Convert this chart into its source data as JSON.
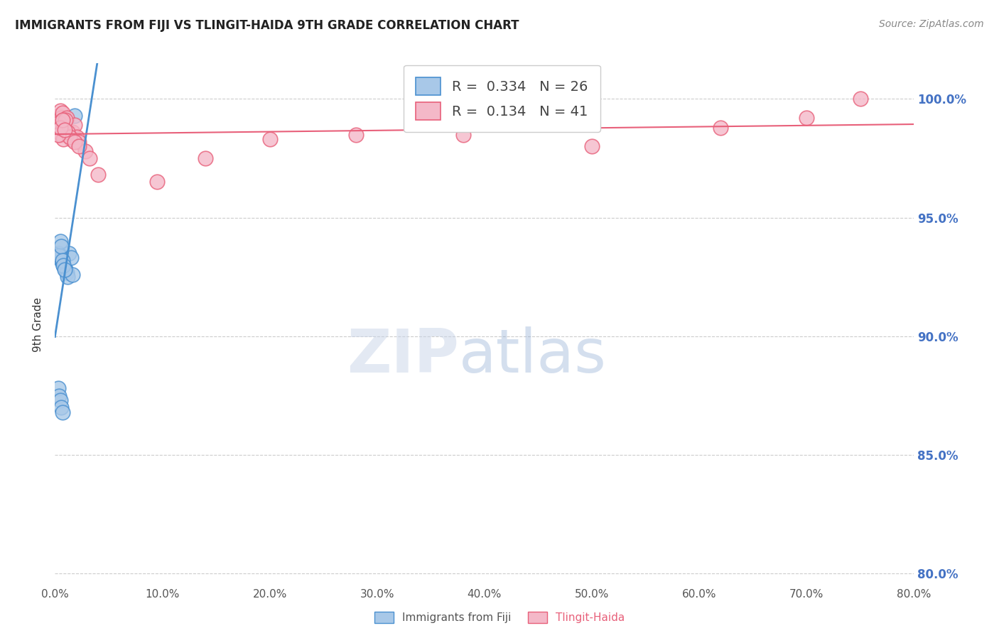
{
  "title": "IMMIGRANTS FROM FIJI VS TLINGIT-HAIDA 9TH GRADE CORRELATION CHART",
  "source": "Source: ZipAtlas.com",
  "ylabel": "9th Grade",
  "legend_r": [
    0.334,
    0.134
  ],
  "legend_n": [
    26,
    41
  ],
  "xlim": [
    0.0,
    80.0
  ],
  "ylim": [
    79.5,
    101.5
  ],
  "yticks": [
    80,
    85,
    90,
    95,
    100
  ],
  "xticks": [
    0,
    10,
    20,
    30,
    40,
    50,
    60,
    70,
    80
  ],
  "blue_face_color": "#a8c8e8",
  "blue_edge_color": "#4a90d0",
  "pink_face_color": "#f4b8c8",
  "pink_edge_color": "#e8607a",
  "blue_line_color": "#4a90d0",
  "pink_line_color": "#e8607a",
  "bottom_legend_labels": [
    "Immigrants from Fiji",
    "Tlingit-Haida"
  ],
  "fiji_x": [
    0.3,
    0.4,
    0.5,
    0.6,
    0.7,
    0.8,
    0.9,
    1.0,
    1.1,
    1.2,
    1.3,
    1.5,
    1.6,
    0.3,
    0.4,
    0.5,
    0.6,
    0.7,
    0.3,
    0.4,
    0.5,
    0.6,
    0.7,
    0.8,
    0.9,
    1.8
  ],
  "fiji_y": [
    93.5,
    93.3,
    93.4,
    93.2,
    93.1,
    93.0,
    92.9,
    92.8,
    92.7,
    92.5,
    93.5,
    93.3,
    92.6,
    87.8,
    87.5,
    87.3,
    87.0,
    86.8,
    93.5,
    93.4,
    94.0,
    93.8,
    93.2,
    93.0,
    92.8,
    99.3
  ],
  "tlingit_x": [
    0.3,
    0.5,
    0.6,
    0.7,
    0.8,
    0.9,
    1.0,
    1.1,
    1.2,
    1.3,
    1.5,
    1.6,
    1.8,
    2.0,
    2.2,
    2.8,
    3.2,
    4.0,
    0.4,
    0.5,
    0.6,
    0.7,
    0.8,
    1.0,
    1.2,
    1.4,
    1.8,
    2.2,
    9.5,
    14.0,
    20.0,
    28.0,
    38.0,
    50.0,
    62.0,
    70.0,
    75.0,
    0.3,
    0.5,
    0.7,
    0.9
  ],
  "tlingit_y": [
    99.3,
    99.5,
    99.2,
    99.4,
    99.1,
    99.0,
    98.8,
    99.2,
    98.7,
    98.5,
    98.3,
    98.6,
    98.9,
    98.4,
    98.2,
    97.8,
    97.5,
    96.8,
    99.0,
    98.8,
    98.5,
    98.7,
    98.3,
    99.1,
    98.6,
    98.4,
    98.2,
    98.0,
    96.5,
    97.5,
    98.3,
    98.5,
    98.5,
    98.0,
    98.8,
    99.2,
    100.0,
    98.5,
    98.8,
    99.1,
    98.7
  ]
}
